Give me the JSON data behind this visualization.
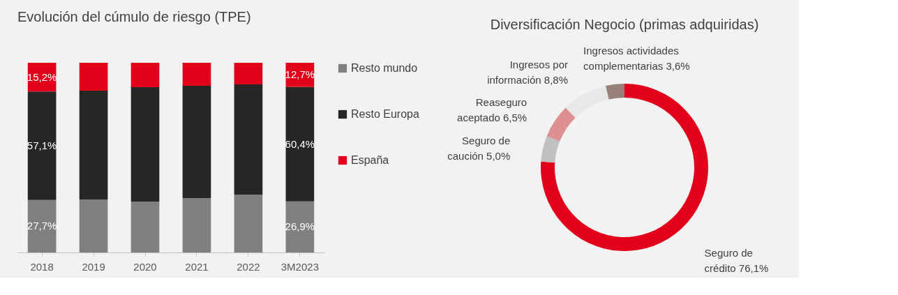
{
  "chart_data": [
    {
      "type": "bar",
      "title": "Evolución del cúmulo de riesgo (TPE)",
      "stacked": true,
      "legend": "right",
      "categories": [
        "2018",
        "2019",
        "2020",
        "2021",
        "2022",
        "3M2023"
      ],
      "series": [
        {
          "name": "Resto mundo",
          "color": "#808080",
          "values": [
            27.7,
            27.9,
            26.8,
            28.7,
            30.5,
            26.9
          ],
          "value_labels": [
            "27,7%",
            null,
            null,
            null,
            null,
            "26,9%"
          ]
        },
        {
          "name": "Resto Europa",
          "color": "#262626",
          "values": [
            57.1,
            57.4,
            60.3,
            59.2,
            58.1,
            60.4
          ],
          "value_labels": [
            "57,1%",
            null,
            null,
            null,
            null,
            "60,4%"
          ]
        },
        {
          "name": "España",
          "color": "#e2001a",
          "values": [
            15.2,
            14.7,
            12.9,
            12.1,
            11.4,
            12.7
          ],
          "value_labels": [
            "15,2%",
            null,
            null,
            null,
            null,
            "12,7%"
          ]
        }
      ]
    },
    {
      "type": "donut",
      "title": "Diversificación Negocio (primas adquiridas)",
      "value_labels": [
        "76,1%",
        "5,0%",
        "6,5%",
        "8,8%",
        "3,6%"
      ],
      "legend": false,
      "categories": [
        "Seguro de crédito",
        "Seguro de caución",
        "Reaseguro aceptado",
        "Ingresos por información",
        "Ingresos actividades complementarias"
      ],
      "values": [
        76.1,
        5.0,
        6.5,
        8.8,
        3.6
      ],
      "colors": [
        "#e2001a",
        "#c0c0c0",
        "#de9090",
        "#e8e8e8",
        "#968077"
      ]
    }
  ]
}
